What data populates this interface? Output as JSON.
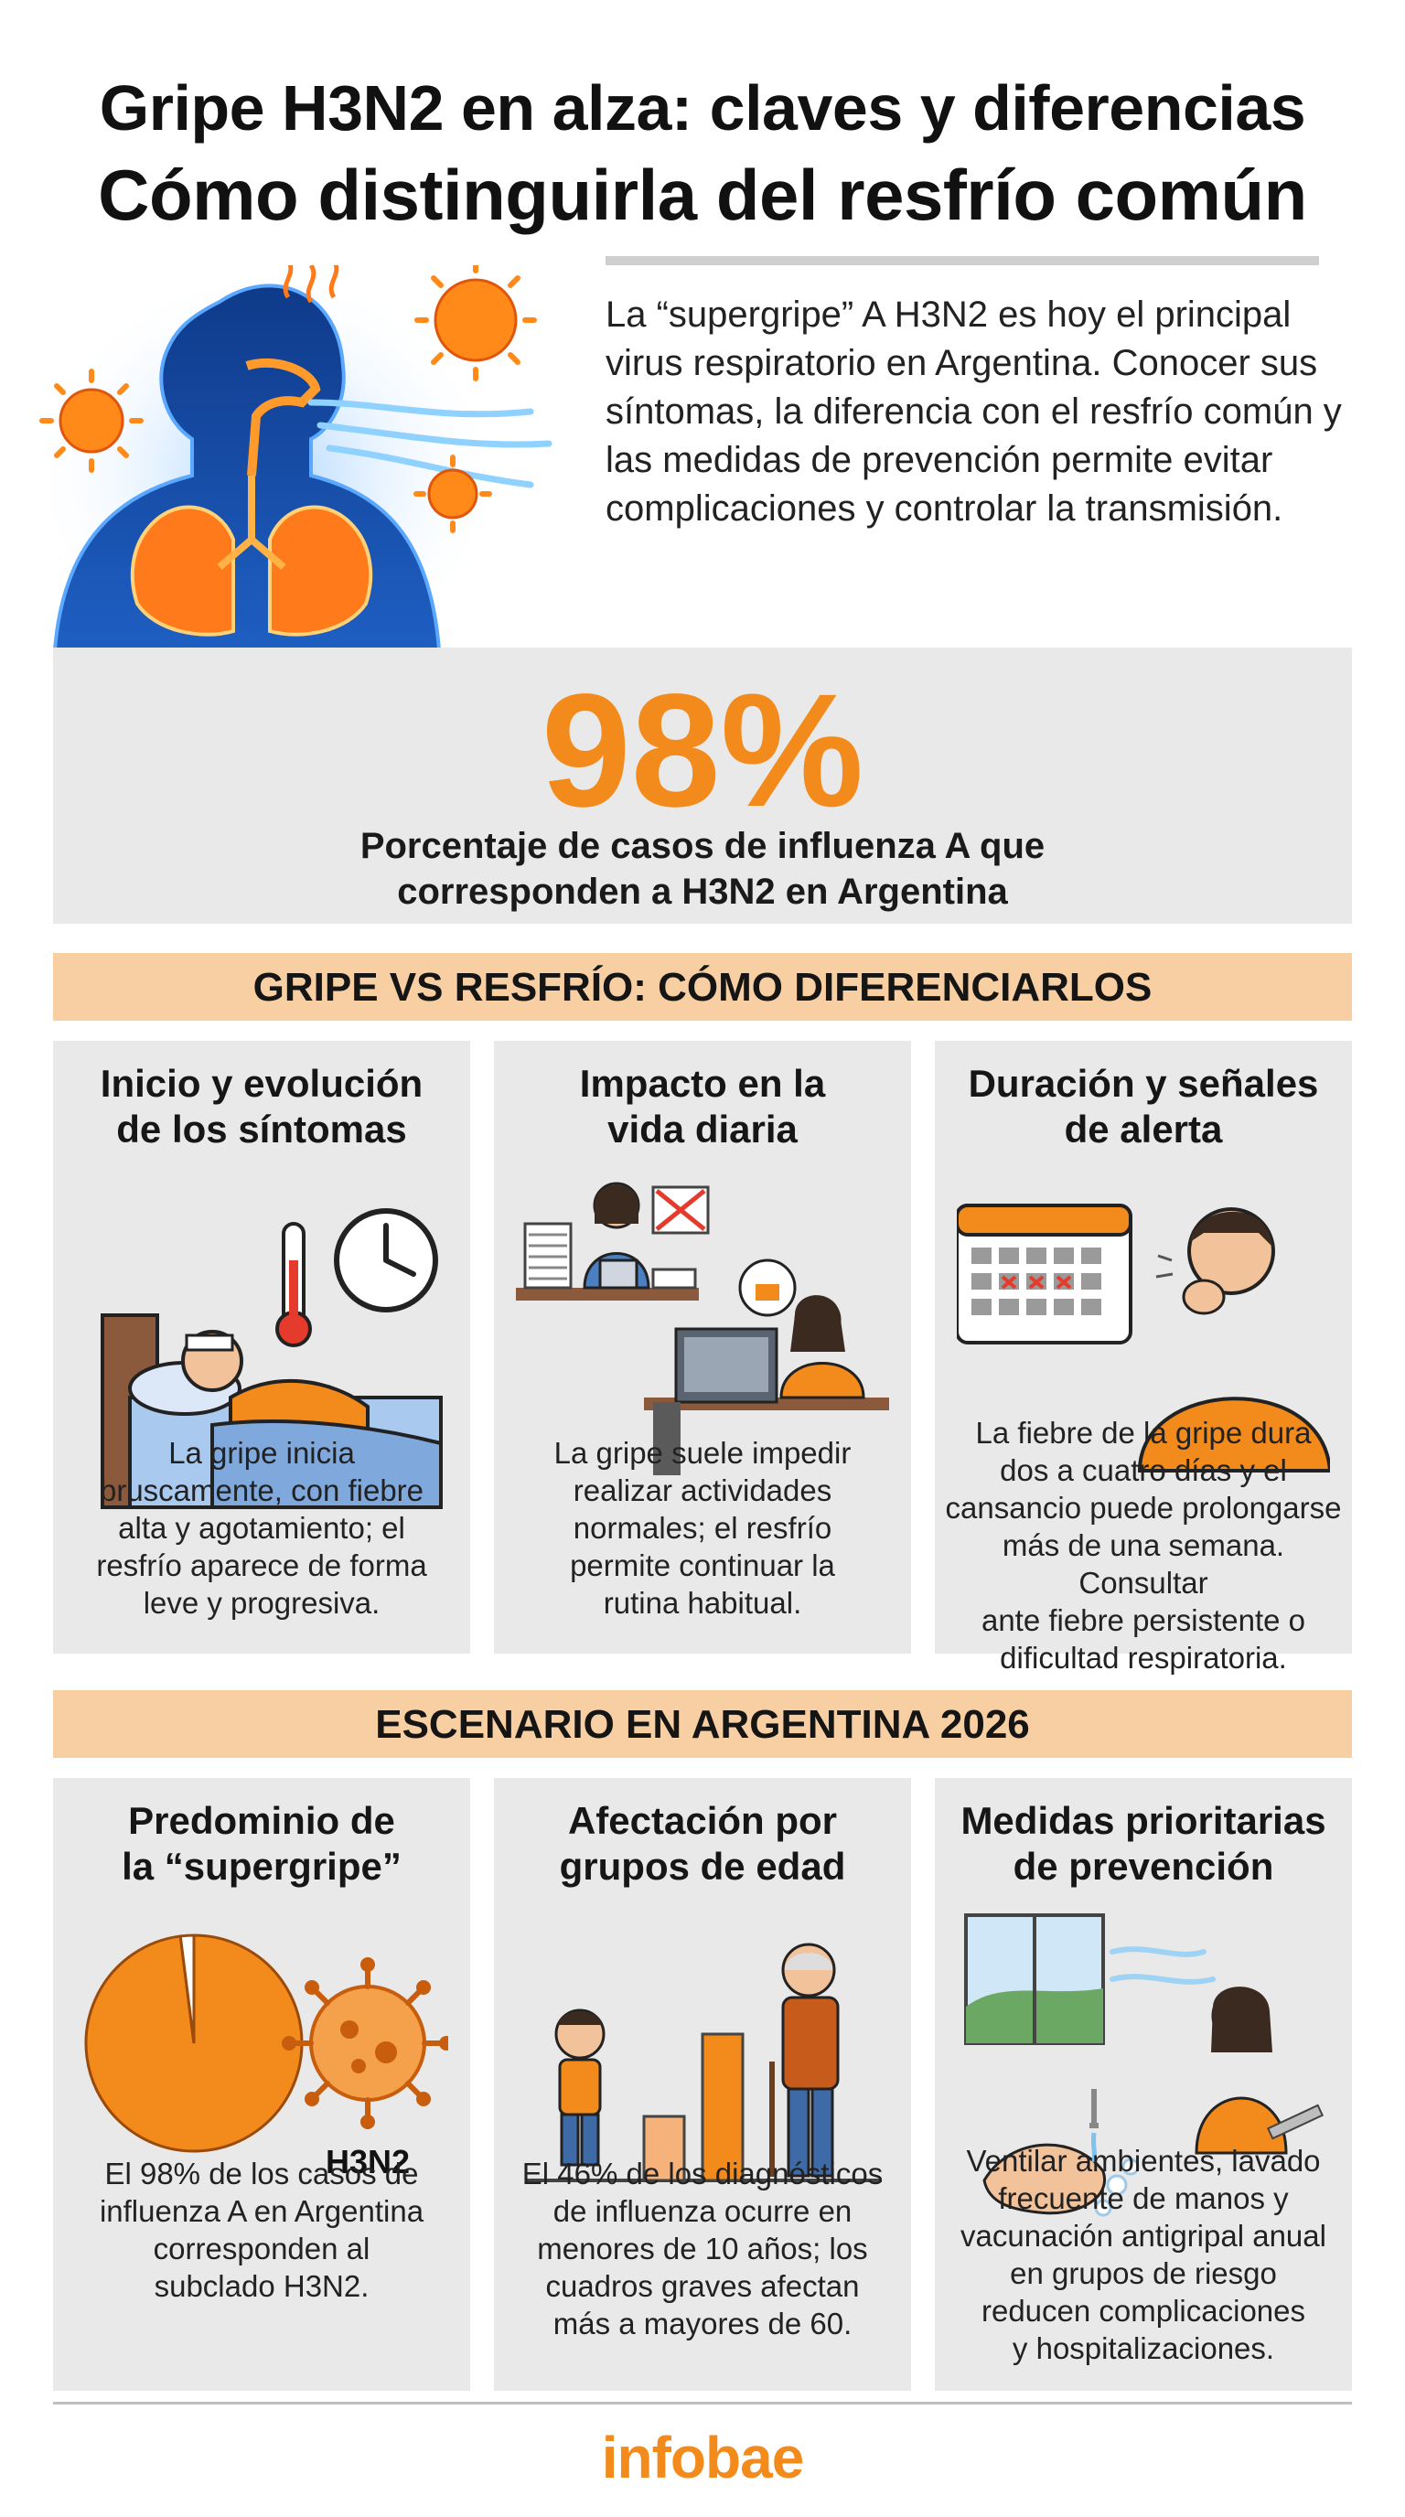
{
  "header": {
    "title_line1": "Gripe H3N2 en alza: claves y diferencias",
    "title_line2": "Cómo distinguirla del resfrío común"
  },
  "intro": {
    "text": "La “supergripe” A H3N2 es hoy el principal virus respiratorio en Argentina. Conocer sus síntomas, la diferencia con el resfrío común y las medidas de prevención permite evitar complicaciones y controlar la transmisión."
  },
  "stat": {
    "value": "98%",
    "caption_line1": "Porcentaje de casos de influenza A que",
    "caption_line2": "corresponden a H3N2 en Argentina"
  },
  "section1": {
    "title": "GRIPE VS RESFRÍO: CÓMO DIFERENCIARLOS",
    "cards": [
      {
        "title": [
          "Inicio y evolución",
          "de los síntomas"
        ],
        "text": [
          "La gripe inicia",
          "bruscamente, con fiebre",
          "alta y agotamiento; el",
          "resfrío aparece de forma",
          "leve y progresiva."
        ]
      },
      {
        "title": [
          "Impacto en la",
          "vida diaria"
        ],
        "text": [
          "La gripe suele impedir",
          "realizar actividades",
          "normales; el resfrío",
          "permite continuar la",
          "rutina habitual."
        ]
      },
      {
        "title": [
          "Duración y señales",
          "de alerta"
        ],
        "text": [
          "La fiebre de la gripe dura",
          "dos a cuatro días y el",
          "cansancio puede prolongarse",
          "más de una semana. Consultar",
          "ante fiebre persistente o",
          "dificultad respiratoria."
        ]
      }
    ]
  },
  "section2": {
    "title": "ESCENARIO EN ARGENTINA 2026",
    "cards": [
      {
        "title": [
          "Predominio de",
          "la “supergripe”"
        ],
        "virus_label": "H3N2",
        "text": [
          "El 98% de los casos de",
          "influenza A en Argentina",
          "corresponden al",
          "subclado H3N2."
        ]
      },
      {
        "title": [
          "Afectación por",
          "grupos de edad"
        ],
        "text": [
          "El 46% de los diagnósticos",
          "de influenza ocurre en",
          "menores de 10 años; los",
          "cuadros graves afectan",
          "más a mayores de 60."
        ]
      },
      {
        "title": [
          "Medidas prioritarias",
          "de prevención"
        ],
        "text": [
          "Ventilar ambientes, lavado",
          "frecuente de manos y",
          "vacunación antigripal anual",
          "en grupos de riesgo",
          "reducen complicaciones",
          "y hospitalizaciones."
        ]
      }
    ]
  },
  "pie_chart": {
    "type": "pie",
    "values": [
      98,
      2
    ],
    "colors": [
      "#f28a1c",
      "#ffffff"
    ]
  },
  "footer": {
    "logo": "infobae"
  },
  "colors": {
    "accent": "#f28a1c",
    "band": "#f8cfa2",
    "card": "#e9e9e9"
  }
}
